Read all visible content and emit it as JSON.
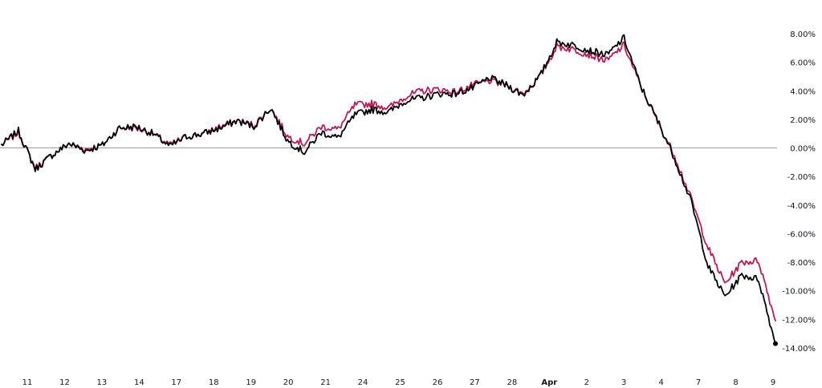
{
  "chart_data": {
    "type": "line",
    "title": "",
    "xlabel": "",
    "ylabel": "",
    "ylim": [
      -14.5,
      8.8
    ],
    "grid": false,
    "zero_line": true,
    "y_axis_side": "right",
    "x_ticks": [
      "11",
      "12",
      "13",
      "14",
      "17",
      "18",
      "19",
      "20",
      "21",
      "24",
      "25",
      "26",
      "27",
      "28",
      "Apr",
      "2",
      "3",
      "4",
      "7",
      "8",
      "9"
    ],
    "y_ticks": [
      "8.00%",
      "6.00%",
      "4.00%",
      "2.00%",
      "0.00%",
      "-2.00%",
      "-4.00%",
      "-6.00%",
      "-8.00%",
      "-10.00%",
      "-12.00%",
      "-14.00%"
    ],
    "y_tick_values": [
      8,
      6,
      4,
      2,
      0,
      -2,
      -4,
      -6,
      -8,
      -10,
      -12,
      -14
    ],
    "colors": {
      "series_black": "#000000",
      "series_pink": "#c2185b",
      "zero_line": "#9e9e9e",
      "text": "#131722"
    },
    "x_index": [
      0,
      0.5,
      1,
      1.5,
      2,
      2.5,
      3,
      3.5,
      4,
      4.5,
      5,
      5.5,
      6,
      6.5,
      7,
      7.5,
      8,
      8.5,
      9,
      9.5,
      10,
      10.5,
      11,
      11.5,
      12,
      12.5,
      13,
      13.5,
      14,
      14.5,
      15,
      15.5,
      16,
      16.5,
      17,
      17.5,
      18,
      18.5,
      19,
      19.5,
      20,
      20.5,
      21,
      21.5,
      22,
      22.5,
      23
    ],
    "series": [
      {
        "color": "#000000",
        "values": [
          0.2,
          1.2,
          -1.5,
          -0.5,
          0.3,
          -0.2,
          0.2,
          1.4,
          1.5,
          1.0,
          0.1,
          0.8,
          1.0,
          1.4,
          1.9,
          1.5,
          2.8,
          0.5,
          -0.3,
          1.1,
          0.7,
          2.3,
          2.7,
          2.5,
          3.3,
          3.5,
          3.8,
          3.8,
          4.2,
          4.9,
          4.4,
          3.7,
          5.0,
          7.4,
          7.2,
          6.8,
          6.5,
          7.7,
          4.3,
          1.9,
          -0.7,
          -3.8,
          -8.3,
          -10.4,
          -8.9,
          -9.2,
          -13.7
        ]
      },
      {
        "color": "#c2185b",
        "values": [
          0.2,
          1.1,
          -1.4,
          -0.5,
          0.3,
          -0.1,
          0.2,
          1.4,
          1.4,
          1.0,
          0.2,
          0.8,
          1.0,
          1.5,
          1.9,
          1.6,
          2.8,
          0.8,
          0.3,
          1.5,
          1.3,
          3.0,
          3.1,
          2.8,
          3.6,
          4.0,
          4.1,
          3.9,
          4.4,
          4.7,
          4.4,
          3.8,
          5.0,
          7.1,
          6.9,
          6.5,
          6.1,
          7.2,
          4.3,
          1.8,
          -0.5,
          -3.6,
          -7.0,
          -9.5,
          -8.0,
          -7.9,
          -12.1
        ]
      }
    ]
  }
}
